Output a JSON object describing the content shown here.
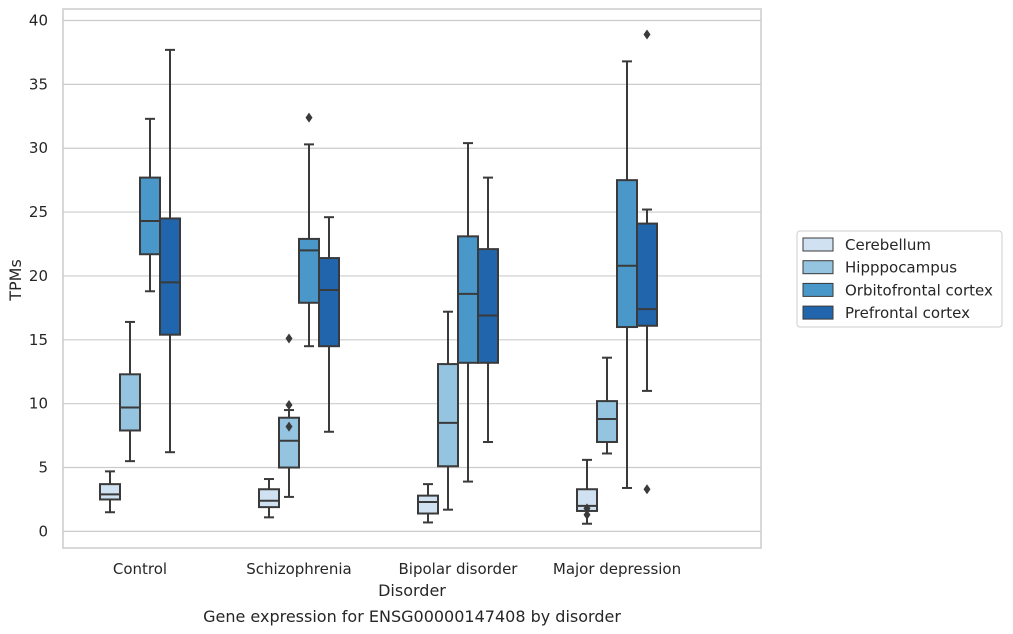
{
  "chart_data": {
    "type": "box",
    "caption": "Gene expression for ENSG00000147408 by disorder",
    "xlabel": "Disorder",
    "ylabel": "TPMs",
    "ylim": [
      -1.3,
      40.9
    ],
    "yticks": [
      0,
      5,
      10,
      15,
      20,
      25,
      30,
      35,
      40
    ],
    "grid": "horizontal",
    "legend_position": "right",
    "categories": [
      "Control",
      "Schizophrenia",
      "Bipolar disorder",
      "Major depression"
    ],
    "series": [
      {
        "name": "Cerebellum",
        "color": "#d0e1f2",
        "boxes": [
          {
            "whislo": 1.5,
            "q1": 2.5,
            "med": 2.9,
            "q3": 3.7,
            "whishi": 4.7,
            "fliers": []
          },
          {
            "whislo": 1.1,
            "q1": 1.9,
            "med": 2.4,
            "q3": 3.3,
            "whishi": 4.1,
            "fliers": []
          },
          {
            "whislo": 0.7,
            "q1": 1.4,
            "med": 2.3,
            "q3": 2.8,
            "whishi": 3.7,
            "fliers": []
          },
          {
            "whislo": 0.6,
            "q1": 1.6,
            "med": 2.0,
            "q3": 3.3,
            "whishi": 5.6,
            "fliers": [
              1.3,
              1.8
            ]
          }
        ]
      },
      {
        "name": "Hipppocampus",
        "color": "#94c4df",
        "boxes": [
          {
            "whislo": 5.5,
            "q1": 7.9,
            "med": 9.7,
            "q3": 12.3,
            "whishi": 16.4,
            "fliers": []
          },
          {
            "whislo": 2.7,
            "q1": 5.0,
            "med": 7.1,
            "q3": 8.9,
            "whishi": 9.5,
            "fliers": [
              15.1,
              9.9,
              8.2
            ]
          },
          {
            "whislo": 1.7,
            "q1": 5.1,
            "med": 8.5,
            "q3": 13.1,
            "whishi": 17.2,
            "fliers": []
          },
          {
            "whislo": 6.1,
            "q1": 7.0,
            "med": 8.8,
            "q3": 10.2,
            "whishi": 13.6,
            "fliers": []
          }
        ]
      },
      {
        "name": "Orbitofrontal cortex",
        "color": "#4a98c9",
        "boxes": [
          {
            "whislo": 18.8,
            "q1": 21.7,
            "med": 24.3,
            "q3": 27.7,
            "whishi": 32.3,
            "fliers": []
          },
          {
            "whislo": 14.5,
            "q1": 17.9,
            "med": 22.0,
            "q3": 22.9,
            "whishi": 30.3,
            "fliers": [
              32.4
            ]
          },
          {
            "whislo": 3.9,
            "q1": 13.2,
            "med": 18.6,
            "q3": 23.1,
            "whishi": 30.4,
            "fliers": []
          },
          {
            "whislo": 3.4,
            "q1": 16.0,
            "med": 20.8,
            "q3": 27.5,
            "whishi": 36.8,
            "fliers": []
          }
        ]
      },
      {
        "name": "Prefrontal cortex",
        "color": "#2166ac",
        "boxes": [
          {
            "whislo": 6.2,
            "q1": 15.4,
            "med": 19.5,
            "q3": 24.5,
            "whishi": 37.7,
            "fliers": []
          },
          {
            "whislo": 7.8,
            "q1": 14.5,
            "med": 18.9,
            "q3": 21.4,
            "whishi": 24.6,
            "fliers": []
          },
          {
            "whislo": 7.0,
            "q1": 13.2,
            "med": 16.9,
            "q3": 22.1,
            "whishi": 27.7,
            "fliers": []
          },
          {
            "whislo": 11.0,
            "q1": 16.1,
            "med": 17.4,
            "q3": 24.1,
            "whishi": 25.2,
            "fliers": [
              38.9,
              3.3
            ]
          }
        ]
      }
    ]
  }
}
